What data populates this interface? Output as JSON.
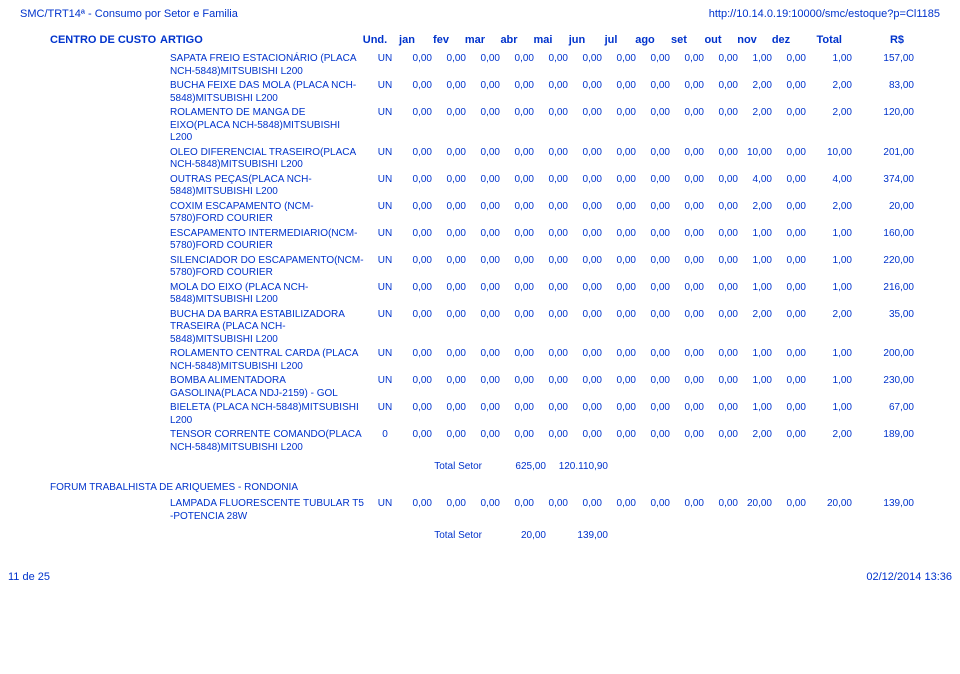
{
  "header": {
    "left": "SMC/TRT14ª - Consumo por Setor e Familia",
    "right": "http://10.14.0.19:10000/smc/estoque?p=Cl1185"
  },
  "labels": {
    "centro": "CENTRO DE CUSTO",
    "artigo": "ARTIGO",
    "und": "Und.",
    "months": [
      "jan",
      "fev",
      "mar",
      "abr",
      "mai",
      "jun",
      "jul",
      "ago",
      "set",
      "out",
      "nov",
      "dez"
    ],
    "total": "Total",
    "rs": "R$",
    "totalSetor": "Total Setor"
  },
  "rows": [
    {
      "artigo": "SAPATA FREIO ESTACIONÁRIO (PLACA NCH-5848)MITSUBISHI L200",
      "und": "UN",
      "m": [
        "0,00",
        "0,00",
        "0,00",
        "0,00",
        "0,00",
        "0,00",
        "0,00",
        "0,00",
        "0,00",
        "0,00",
        "1,00",
        "0,00"
      ],
      "total": "1,00",
      "rs": "157,00"
    },
    {
      "artigo": "BUCHA FEIXE DAS MOLA (PLACA NCH-5848)MITSUBISHI L200",
      "und": "UN",
      "m": [
        "0,00",
        "0,00",
        "0,00",
        "0,00",
        "0,00",
        "0,00",
        "0,00",
        "0,00",
        "0,00",
        "0,00",
        "2,00",
        "0,00"
      ],
      "total": "2,00",
      "rs": "83,00"
    },
    {
      "artigo": "ROLAMENTO DE MANGA DE EIXO(PLACA NCH-5848)MITSUBISHI L200",
      "und": "UN",
      "m": [
        "0,00",
        "0,00",
        "0,00",
        "0,00",
        "0,00",
        "0,00",
        "0,00",
        "0,00",
        "0,00",
        "0,00",
        "2,00",
        "0,00"
      ],
      "total": "2,00",
      "rs": "120,00"
    },
    {
      "artigo": "OLEO DIFERENCIAL TRASEIRO(PLACA NCH-5848)MITSUBISHI L200",
      "und": "UN",
      "m": [
        "0,00",
        "0,00",
        "0,00",
        "0,00",
        "0,00",
        "0,00",
        "0,00",
        "0,00",
        "0,00",
        "0,00",
        "10,00",
        "0,00"
      ],
      "total": "10,00",
      "rs": "201,00"
    },
    {
      "artigo": "OUTRAS PEÇAS(PLACA NCH-5848)MITSUBISHI L200",
      "und": "UN",
      "m": [
        "0,00",
        "0,00",
        "0,00",
        "0,00",
        "0,00",
        "0,00",
        "0,00",
        "0,00",
        "0,00",
        "0,00",
        "4,00",
        "0,00"
      ],
      "total": "4,00",
      "rs": "374,00"
    },
    {
      "artigo": "COXIM ESCAPAMENTO (NCM-5780)FORD COURIER",
      "und": "UN",
      "m": [
        "0,00",
        "0,00",
        "0,00",
        "0,00",
        "0,00",
        "0,00",
        "0,00",
        "0,00",
        "0,00",
        "0,00",
        "2,00",
        "0,00"
      ],
      "total": "2,00",
      "rs": "20,00"
    },
    {
      "artigo": "ESCAPAMENTO INTERMEDIARIO(NCM-5780)FORD COURIER",
      "und": "UN",
      "m": [
        "0,00",
        "0,00",
        "0,00",
        "0,00",
        "0,00",
        "0,00",
        "0,00",
        "0,00",
        "0,00",
        "0,00",
        "1,00",
        "0,00"
      ],
      "total": "1,00",
      "rs": "160,00"
    },
    {
      "artigo": "SILENCIADOR DO ESCAPAMENTO(NCM-5780)FORD COURIER",
      "und": "UN",
      "m": [
        "0,00",
        "0,00",
        "0,00",
        "0,00",
        "0,00",
        "0,00",
        "0,00",
        "0,00",
        "0,00",
        "0,00",
        "1,00",
        "0,00"
      ],
      "total": "1,00",
      "rs": "220,00"
    },
    {
      "artigo": "MOLA DO EIXO (PLACA NCH-5848)MITSUBISHI L200",
      "und": "UN",
      "m": [
        "0,00",
        "0,00",
        "0,00",
        "0,00",
        "0,00",
        "0,00",
        "0,00",
        "0,00",
        "0,00",
        "0,00",
        "1,00",
        "0,00"
      ],
      "total": "1,00",
      "rs": "216,00"
    },
    {
      "artigo": "BUCHA DA BARRA ESTABILIZADORA TRASEIRA (PLACA NCH-5848)MITSUBISHI L200",
      "und": "UN",
      "m": [
        "0,00",
        "0,00",
        "0,00",
        "0,00",
        "0,00",
        "0,00",
        "0,00",
        "0,00",
        "0,00",
        "0,00",
        "2,00",
        "0,00"
      ],
      "total": "2,00",
      "rs": "35,00"
    },
    {
      "artigo": "ROLAMENTO CENTRAL CARDA (PLACA NCH-5848)MITSUBISHI L200",
      "und": "UN",
      "m": [
        "0,00",
        "0,00",
        "0,00",
        "0,00",
        "0,00",
        "0,00",
        "0,00",
        "0,00",
        "0,00",
        "0,00",
        "1,00",
        "0,00"
      ],
      "total": "1,00",
      "rs": "200,00"
    },
    {
      "artigo": "BOMBA ALIMENTADORA GASOLINA(PLACA NDJ-2159) - GOL",
      "und": "UN",
      "m": [
        "0,00",
        "0,00",
        "0,00",
        "0,00",
        "0,00",
        "0,00",
        "0,00",
        "0,00",
        "0,00",
        "0,00",
        "1,00",
        "0,00"
      ],
      "total": "1,00",
      "rs": "230,00"
    },
    {
      "artigo": "BIELETA (PLACA NCH-5848)MITSUBISHI L200",
      "und": "UN",
      "m": [
        "0,00",
        "0,00",
        "0,00",
        "0,00",
        "0,00",
        "0,00",
        "0,00",
        "0,00",
        "0,00",
        "0,00",
        "1,00",
        "0,00"
      ],
      "total": "1,00",
      "rs": "67,00"
    },
    {
      "artigo": "TENSOR CORRENTE COMANDO(PLACA NCH-5848)MITSUBISHI L200",
      "und": "0",
      "m": [
        "0,00",
        "0,00",
        "0,00",
        "0,00",
        "0,00",
        "0,00",
        "0,00",
        "0,00",
        "0,00",
        "0,00",
        "2,00",
        "0,00"
      ],
      "total": "2,00",
      "rs": "189,00"
    }
  ],
  "totalSetor1": {
    "total": "625,00",
    "rs": "120.110,90"
  },
  "forumTitle": "FORUM TRABALHISTA DE ARIQUEMES - RONDONIA",
  "rows2": [
    {
      "artigo": "LAMPADA FLUORESCENTE TUBULAR T5 -POTENCIA 28W",
      "und": "UN",
      "m": [
        "0,00",
        "0,00",
        "0,00",
        "0,00",
        "0,00",
        "0,00",
        "0,00",
        "0,00",
        "0,00",
        "0,00",
        "20,00",
        "0,00"
      ],
      "total": "20,00",
      "rs": "139,00"
    }
  ],
  "totalSetor2": {
    "total": "20,00",
    "rs": "139,00"
  },
  "footer": {
    "left": "11 de 25",
    "right": "02/12/2014 13:36"
  },
  "style": {
    "text_color": "#0033cc",
    "background_color": "#ffffff",
    "font_family": "Arial",
    "font_size_header": 11,
    "font_size_body": 10
  }
}
